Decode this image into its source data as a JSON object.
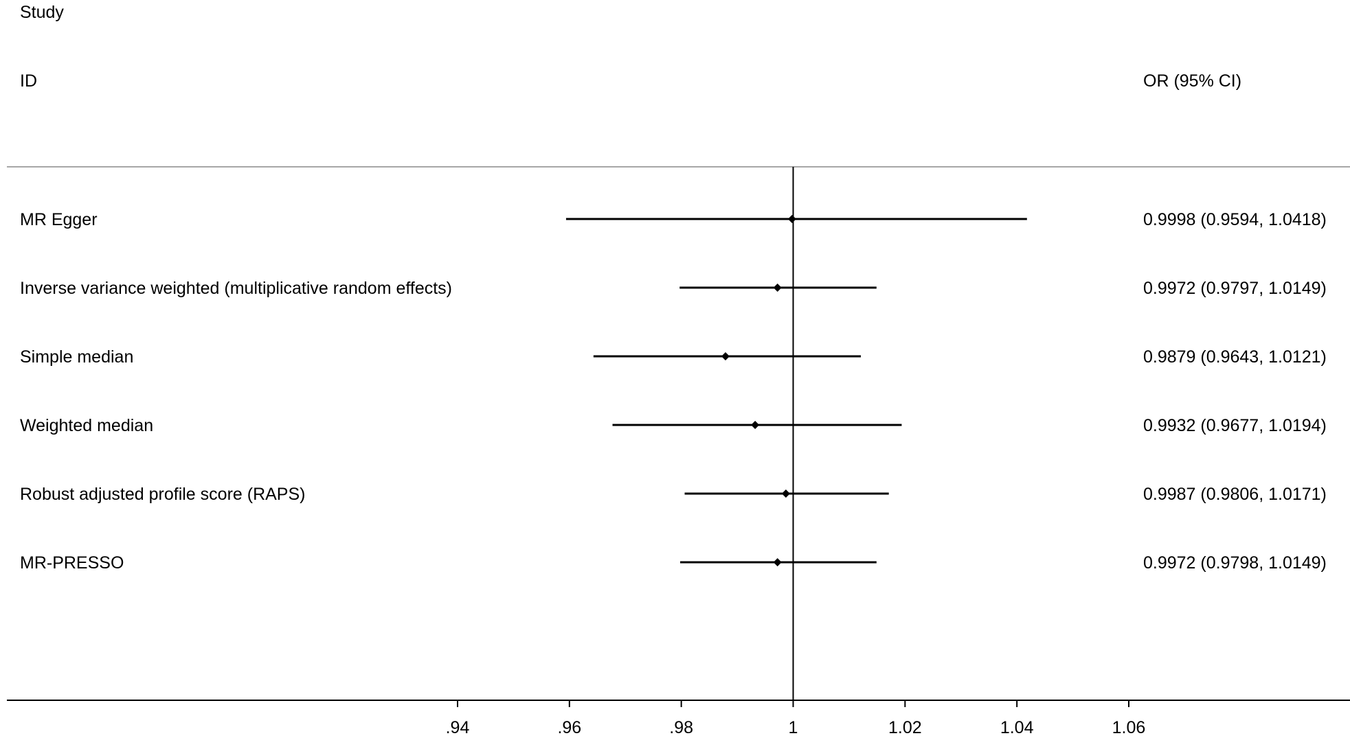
{
  "chart_data": {
    "type": "forest",
    "headers": {
      "study_line1": "Study",
      "study_line2": "ID",
      "estimate": "OR (95% CI)"
    },
    "rows": [
      {
        "label": "MR Egger",
        "or": 0.9998,
        "lower": 0.9594,
        "upper": 1.0418,
        "text": "0.9998 (0.9594, 1.0418)"
      },
      {
        "label": "Inverse variance weighted (multiplicative random effects)",
        "or": 0.9972,
        "lower": 0.9797,
        "upper": 1.0149,
        "text": "0.9972 (0.9797, 1.0149)"
      },
      {
        "label": "Simple median",
        "or": 0.9879,
        "lower": 0.9643,
        "upper": 1.0121,
        "text": "0.9879 (0.9643, 1.0121)"
      },
      {
        "label": "Weighted median",
        "or": 0.9932,
        "lower": 0.9677,
        "upper": 1.0194,
        "text": "0.9932 (0.9677, 1.0194)"
      },
      {
        "label": "Robust adjusted profile score (RAPS)",
        "or": 0.9987,
        "lower": 0.9806,
        "upper": 1.0171,
        "text": "0.9987 (0.9806, 1.0171)"
      },
      {
        "label": "MR-PRESSO",
        "or": 0.9972,
        "lower": 0.9798,
        "upper": 1.0149,
        "text": "0.9972 (0.9798, 1.0149)"
      }
    ],
    "reference_line": 1,
    "x_ticks": [
      0.94,
      0.96,
      0.98,
      1,
      1.02,
      1.04,
      1.06
    ],
    "x_tick_labels": [
      ".94",
      ".96",
      ".98",
      "1",
      "1.02",
      "1.04",
      "1.06"
    ],
    "x_scale": "linear",
    "grid": false,
    "colors": {
      "line": "#000000",
      "header_rule": "#a6a6a6"
    }
  }
}
